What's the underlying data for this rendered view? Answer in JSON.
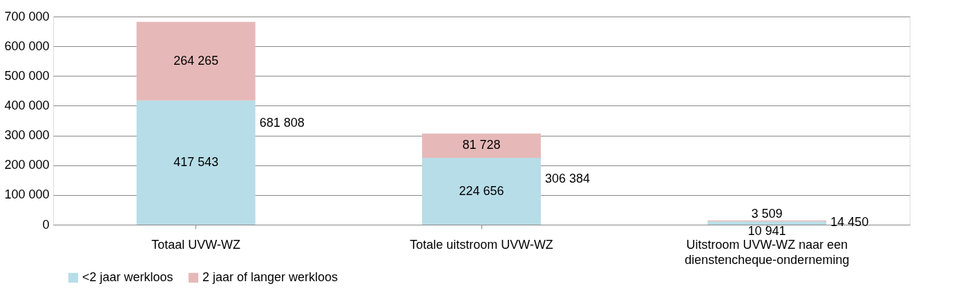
{
  "chart_data": {
    "type": "bar",
    "stacked": true,
    "categories": [
      "Totaal UVW-WZ",
      "Totale uitstroom UVW-WZ",
      "Uitstroom UVW-WZ naar een dienstencheque-onderneming"
    ],
    "series": [
      {
        "name": "<2 jaar werkloos",
        "color": "#b7dde8",
        "values": [
          417543,
          224656,
          10941
        ],
        "value_labels": [
          "417 543",
          "224 656",
          "10 941"
        ]
      },
      {
        "name": "2 jaar of langer werkloos",
        "color": "#e6b9b8",
        "values": [
          264265,
          81728,
          3509
        ],
        "value_labels": [
          "264 265",
          "81 728",
          "3 509"
        ]
      }
    ],
    "totals": [
      "681 808",
      "306 384",
      "14 450"
    ],
    "ylim": [
      0,
      700000
    ],
    "yticks": [
      {
        "value": 0,
        "label": "0"
      },
      {
        "value": 100000,
        "label": "100 000"
      },
      {
        "value": 200000,
        "label": "200 000"
      },
      {
        "value": 300000,
        "label": "300 000"
      },
      {
        "value": 400000,
        "label": "400 000"
      },
      {
        "value": 500000,
        "label": "500 000"
      },
      {
        "value": 600000,
        "label": "600 000"
      },
      {
        "value": 700000,
        "label": "700 000"
      }
    ],
    "grid": "y",
    "legend": "bottom"
  }
}
